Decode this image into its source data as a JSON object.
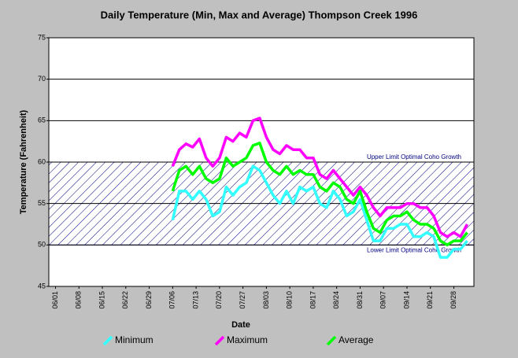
{
  "chart_data": {
    "type": "line",
    "title": "Daily Temperature (Min, Max and Average) Thompson Creek 1996",
    "x_label": "Date",
    "y_label": "Temperature (Fahrenheit)",
    "x": [
      "07/06",
      "07/08",
      "07/10",
      "07/12",
      "07/14",
      "07/16",
      "07/18",
      "07/20",
      "07/22",
      "07/24",
      "07/26",
      "07/28",
      "07/30",
      "08/01",
      "08/03",
      "08/05",
      "08/07",
      "08/09",
      "08/11",
      "08/13",
      "08/15",
      "08/17",
      "08/19",
      "08/21",
      "08/23",
      "08/25",
      "08/27",
      "08/29",
      "08/31",
      "09/02",
      "09/04",
      "09/06",
      "09/08",
      "09/10",
      "09/12",
      "09/14",
      "09/16",
      "09/18",
      "09/20",
      "09/22",
      "09/24",
      "09/26",
      "09/28",
      "09/30",
      "10/02"
    ],
    "series": [
      {
        "name": "Minimum",
        "color": "#33ffff",
        "values": [
          53,
          56.5,
          56.5,
          55.5,
          56.5,
          55.5,
          53.5,
          54,
          57,
          56,
          57,
          57.5,
          59.5,
          59,
          57.5,
          56,
          55,
          56.5,
          55,
          57,
          56.5,
          57,
          55,
          54.5,
          56.5,
          55.5,
          53.5,
          54,
          55.5,
          53,
          50.5,
          50.5,
          52,
          52,
          52.5,
          52.5,
          51,
          51,
          51.5,
          51,
          48.5,
          48.5,
          49.5,
          49.5,
          50.5
        ]
      },
      {
        "name": "Maximum",
        "color": "#ff00ff",
        "values": [
          59.5,
          61.5,
          62.2,
          61.8,
          62.8,
          60.5,
          59.5,
          60.5,
          63,
          62.5,
          63.5,
          63,
          65,
          65.3,
          63,
          61.5,
          61,
          62,
          61.5,
          61.5,
          60.5,
          60.5,
          58.5,
          58,
          59,
          58,
          57,
          56,
          57,
          56,
          54.5,
          53.5,
          54.5,
          54.5,
          54.5,
          55,
          55,
          54.5,
          54.5,
          53.5,
          51.5,
          51,
          51.5,
          51,
          52.5
        ]
      },
      {
        "name": "Average",
        "color": "#00ff00",
        "values": [
          56.5,
          59,
          59.5,
          58.5,
          59.5,
          58,
          57.5,
          58,
          60.5,
          59.5,
          60,
          60.5,
          62,
          62.3,
          60,
          59,
          58.5,
          59.5,
          58.5,
          59,
          58.5,
          58.5,
          57,
          56.5,
          57.5,
          57,
          55.5,
          55,
          56.5,
          54,
          52,
          51.5,
          53,
          53.5,
          53.5,
          54,
          53,
          52.5,
          52.5,
          52,
          50.5,
          50,
          50.5,
          50.5,
          51.5
        ]
      }
    ],
    "xlim": [
      "05/30",
      "10/04"
    ],
    "xticks": [
      "06/01",
      "06/08",
      "06/15",
      "06/22",
      "06/29",
      "07/06",
      "07/13",
      "07/20",
      "07/27",
      "08/03",
      "08/10",
      "08/17",
      "08/24",
      "08/31",
      "09/07",
      "09/14",
      "09/21",
      "09/28"
    ],
    "ylim": [
      45,
      75
    ],
    "yticks": [
      45,
      50,
      55,
      60,
      65,
      70,
      75
    ],
    "grid": true,
    "band": {
      "from": 50,
      "to": 60,
      "upper_label": "Upper Limit Optimal Coho Growth",
      "lower_label": "Lower Limit Optimal Coho Growth"
    },
    "legend": "bottom"
  }
}
